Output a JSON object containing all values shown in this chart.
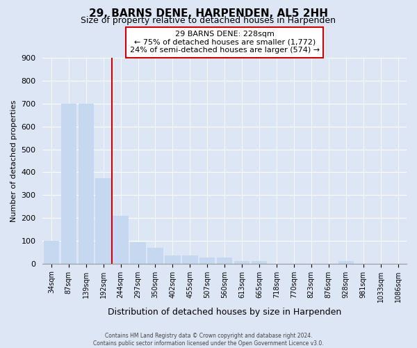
{
  "title": "29, BARNS DENE, HARPENDEN, AL5 2HH",
  "subtitle": "Size of property relative to detached houses in Harpenden",
  "xlabel": "Distribution of detached houses by size in Harpenden",
  "ylabel": "Number of detached properties",
  "bar_labels": [
    "34sqm",
    "87sqm",
    "139sqm",
    "192sqm",
    "244sqm",
    "297sqm",
    "350sqm",
    "402sqm",
    "455sqm",
    "507sqm",
    "560sqm",
    "613sqm",
    "665sqm",
    "718sqm",
    "770sqm",
    "823sqm",
    "876sqm",
    "928sqm",
    "981sqm",
    "1033sqm",
    "1086sqm"
  ],
  "bar_values": [
    100,
    700,
    700,
    375,
    210,
    95,
    70,
    35,
    35,
    25,
    25,
    10,
    10,
    0,
    0,
    0,
    0,
    10,
    0,
    0,
    0
  ],
  "bar_color": "#c5d8f0",
  "vline_index": 4,
  "vline_color": "#cc0000",
  "annotation_line1": "29 BARNS DENE: 228sqm",
  "annotation_line2": "← 75% of detached houses are smaller (1,772)",
  "annotation_line3": "24% of semi-detached houses are larger (574) →",
  "annotation_box_facecolor": "#ffffff",
  "annotation_box_edgecolor": "#cc0000",
  "ylim": [
    0,
    900
  ],
  "yticks": [
    0,
    100,
    200,
    300,
    400,
    500,
    600,
    700,
    800,
    900
  ],
  "footer_line1": "Contains HM Land Registry data © Crown copyright and database right 2024.",
  "footer_line2": "Contains public sector information licensed under the Open Government Licence v3.0.",
  "bg_color": "#dce6f5",
  "plot_bg_color": "#dce6f5",
  "title_fontsize": 11,
  "subtitle_fontsize": 9,
  "ylabel_fontsize": 8,
  "xlabel_fontsize": 9,
  "tick_fontsize": 8,
  "xtick_fontsize": 7
}
